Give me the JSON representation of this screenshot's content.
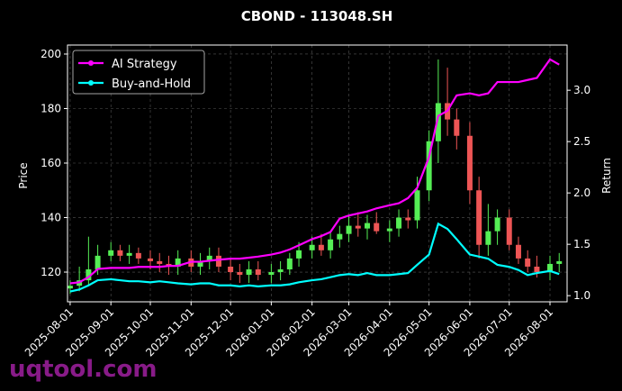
{
  "chart_data": {
    "type": "candlestick",
    "title": "CBOND - 113048.SH",
    "ylabel": "Price",
    "y2label": "Return",
    "watermark": "uqtool.com",
    "x": [
      "2025-08-01",
      "2025-08-08",
      "2025-08-15",
      "2025-08-22",
      "2025-09-01",
      "2025-09-08",
      "2025-09-15",
      "2025-09-22",
      "2025-10-01",
      "2025-10-08",
      "2025-10-15",
      "2025-10-22",
      "2025-11-01",
      "2025-11-08",
      "2025-11-15",
      "2025-11-22",
      "2025-12-01",
      "2025-12-08",
      "2025-12-15",
      "2025-12-22",
      "2026-01-01",
      "2026-01-08",
      "2026-01-15",
      "2026-01-22",
      "2026-02-01",
      "2026-02-08",
      "2026-02-15",
      "2026-02-22",
      "2026-03-01",
      "2026-03-08",
      "2026-03-15",
      "2026-03-22",
      "2026-04-01",
      "2026-04-08",
      "2026-04-15",
      "2026-04-22",
      "2026-05-01",
      "2026-05-08",
      "2026-05-15",
      "2026-05-22",
      "2026-06-01",
      "2026-06-08",
      "2026-06-15",
      "2026-06-22",
      "2026-07-01",
      "2026-07-08",
      "2026-07-15",
      "2026-07-22",
      "2026-08-01",
      "2026-08-08"
    ],
    "open": [
      114,
      115,
      117,
      121,
      126,
      128,
      126,
      127,
      125,
      124,
      123,
      122,
      125,
      122,
      124,
      126,
      122,
      120,
      119,
      121,
      119,
      120,
      121,
      125,
      128,
      130,
      128,
      132,
      134,
      137,
      136,
      138,
      135,
      136,
      140,
      139,
      150,
      168,
      182,
      176,
      170,
      150,
      130,
      135,
      140,
      130,
      125,
      122,
      120,
      123
    ],
    "high": [
      117,
      122,
      133,
      130,
      131,
      130,
      130,
      129,
      128,
      127,
      126,
      128,
      128,
      127,
      129,
      129,
      125,
      123,
      124,
      124,
      123,
      124,
      127,
      131,
      133,
      134,
      135,
      137,
      141,
      142,
      141,
      142,
      139,
      143,
      143,
      155,
      172,
      198,
      195,
      180,
      175,
      155,
      145,
      143,
      143,
      133,
      128,
      126,
      126,
      127
    ],
    "low": [
      112,
      113,
      115,
      119,
      124,
      124,
      123,
      123,
      121,
      120,
      119,
      119,
      120,
      119,
      121,
      120,
      117,
      116,
      116,
      117,
      116,
      117,
      119,
      122,
      125,
      126,
      125,
      129,
      131,
      133,
      132,
      134,
      131,
      133,
      136,
      136,
      146,
      160,
      170,
      165,
      145,
      125,
      126,
      130,
      128,
      123,
      120,
      118,
      117,
      120
    ],
    "close": [
      115,
      117,
      121,
      126,
      128,
      126,
      127,
      125,
      124,
      123,
      122,
      125,
      122,
      124,
      126,
      122,
      120,
      119,
      121,
      119,
      120,
      121,
      125,
      128,
      130,
      128,
      132,
      134,
      137,
      136,
      138,
      135,
      136,
      140,
      139,
      150,
      168,
      182,
      176,
      170,
      150,
      130,
      135,
      140,
      130,
      125,
      122,
      120,
      123,
      124
    ],
    "up_color": "#55ee55",
    "down_color": "#ee5555",
    "series": [
      {
        "name": "AI Strategy",
        "color": "#ff00ff",
        "axis": "y2",
        "values": [
          1.12,
          1.13,
          1.18,
          1.26,
          1.27,
          1.27,
          1.27,
          1.28,
          1.28,
          1.28,
          1.29,
          1.29,
          1.33,
          1.33,
          1.34,
          1.35,
          1.36,
          1.36,
          1.37,
          1.38,
          1.4,
          1.42,
          1.45,
          1.49,
          1.55,
          1.58,
          1.62,
          1.75,
          1.78,
          1.8,
          1.82,
          1.85,
          1.88,
          1.9,
          1.95,
          2.05,
          2.35,
          2.75,
          2.8,
          2.95,
          2.97,
          2.95,
          2.97,
          3.08,
          3.08,
          3.08,
          3.1,
          3.12,
          3.3,
          3.25
        ]
      },
      {
        "name": "Buy-and-Hold",
        "color": "#00ffff",
        "axis": "y2",
        "values": [
          1.04,
          1.06,
          1.1,
          1.15,
          1.16,
          1.15,
          1.14,
          1.14,
          1.13,
          1.14,
          1.13,
          1.12,
          1.11,
          1.12,
          1.12,
          1.1,
          1.1,
          1.09,
          1.1,
          1.09,
          1.1,
          1.1,
          1.11,
          1.13,
          1.15,
          1.16,
          1.18,
          1.2,
          1.21,
          1.2,
          1.22,
          1.2,
          1.2,
          1.21,
          1.22,
          1.3,
          1.4,
          1.7,
          1.65,
          1.55,
          1.4,
          1.38,
          1.36,
          1.3,
          1.28,
          1.25,
          1.2,
          1.22,
          1.24,
          1.21
        ]
      }
    ],
    "xlim": [
      "2025-07-30",
      "2026-08-14"
    ],
    "xticks": [
      "2025-08-01",
      "2025-09-01",
      "2025-10-01",
      "2025-11-01",
      "2025-12-01",
      "2026-01-01",
      "2026-02-01",
      "2026-03-01",
      "2026-04-01",
      "2026-05-01",
      "2026-06-01",
      "2026-07-01",
      "2026-08-01"
    ],
    "ylim": [
      109.1,
      203.3
    ],
    "yticks": [
      120,
      140,
      160,
      180,
      200
    ],
    "y2lim": [
      0.94,
      3.44
    ],
    "y2ticks": [
      {
        "value": 1,
        "label": "1.0"
      },
      1.5,
      {
        "value": 2,
        "label": "2.0"
      },
      2.5,
      {
        "value": 3,
        "label": "3.0"
      }
    ],
    "grid": true,
    "legend": "upper left"
  }
}
